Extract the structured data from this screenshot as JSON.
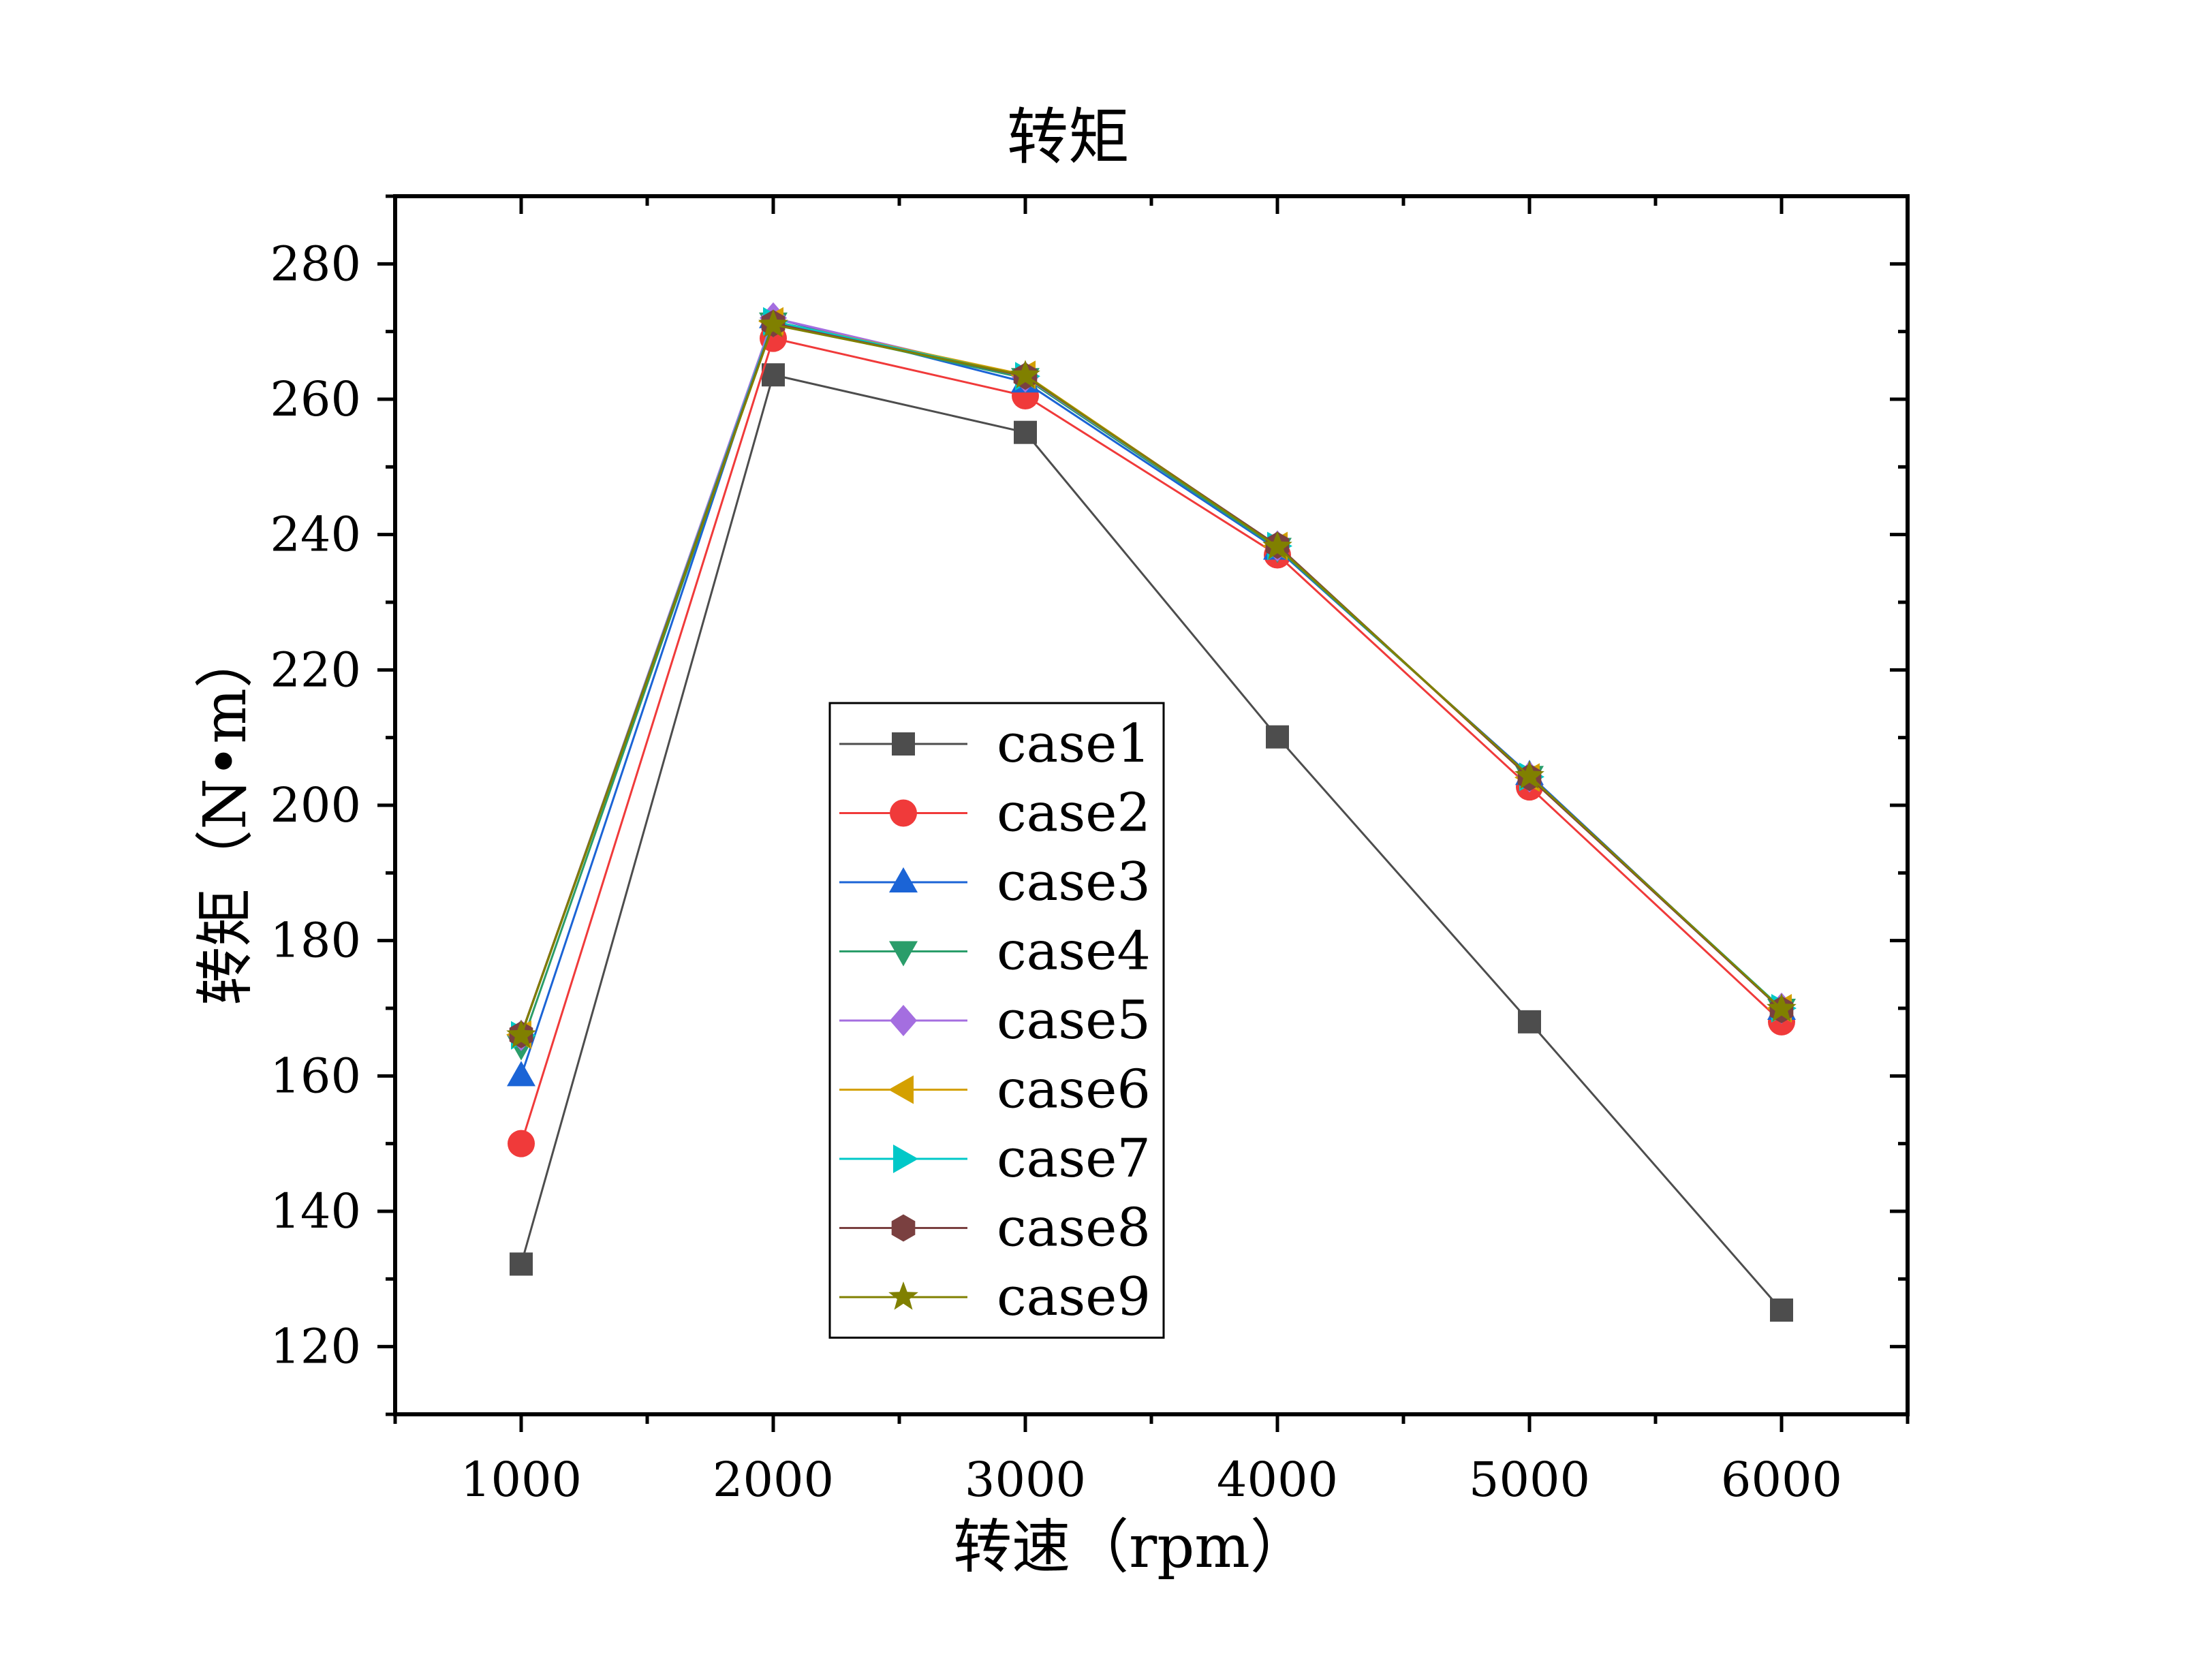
{
  "chart_data": {
    "type": "line",
    "title": "转矩",
    "xlabel": "转速（rpm）",
    "ylabel": "转矩（N•m）",
    "xlim": [
      500,
      6500
    ],
    "ylim": [
      110,
      290
    ],
    "xticks": [
      1000,
      2000,
      3000,
      4000,
      5000,
      6000
    ],
    "yticks": [
      120,
      140,
      160,
      180,
      200,
      220,
      240,
      260,
      280
    ],
    "legend_position": "center",
    "x": [
      1000,
      2000,
      3000,
      4000,
      5000,
      6000
    ],
    "series": [
      {
        "name": "case1",
        "color": "#4d4d4d",
        "marker": "square",
        "values": [
          132.2,
          263.6,
          255.1,
          210.1,
          168.0,
          125.4
        ]
      },
      {
        "name": "case2",
        "color": "#f03a3a",
        "marker": "circle",
        "values": [
          150.0,
          269.0,
          260.5,
          237.0,
          202.7,
          168.0
        ]
      },
      {
        "name": "case3",
        "color": "#1b64d6",
        "marker": "triangle-up",
        "values": [
          160.0,
          272.0,
          262.5,
          237.8,
          204.5,
          169.8
        ]
      },
      {
        "name": "case4",
        "color": "#2a9d6a",
        "marker": "triangle-down",
        "values": [
          164.5,
          271.3,
          263.1,
          238.0,
          204.3,
          169.9
        ]
      },
      {
        "name": "case5",
        "color": "#a46ee0",
        "marker": "diamond",
        "values": [
          166.0,
          272.0,
          263.3,
          238.3,
          204.2,
          170.0
        ]
      },
      {
        "name": "case6",
        "color": "#d4a000",
        "marker": "triangle-left",
        "values": [
          166.1,
          271.5,
          263.6,
          238.3,
          204.1,
          170.0
        ]
      },
      {
        "name": "case7",
        "color": "#00c8c8",
        "marker": "triangle-right",
        "values": [
          166.0,
          271.5,
          263.4,
          238.3,
          204.2,
          170.0
        ]
      },
      {
        "name": "case8",
        "color": "#7a4040",
        "marker": "hexagon",
        "values": [
          166.1,
          271.2,
          263.4,
          238.4,
          204.1,
          169.8
        ]
      },
      {
        "name": "case9",
        "color": "#808000",
        "marker": "star",
        "values": [
          166.0,
          271.0,
          263.5,
          238.2,
          204.3,
          169.9
        ]
      }
    ]
  }
}
